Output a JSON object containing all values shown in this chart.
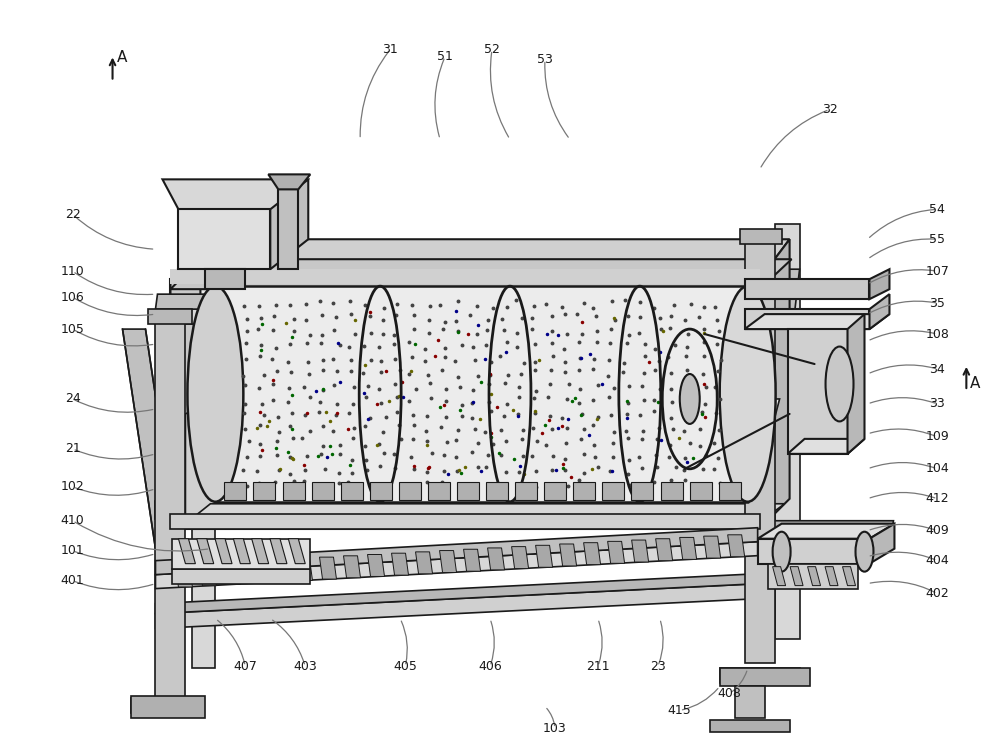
{
  "bg_color": "#ffffff",
  "lc": "#1a1a1a",
  "lc_light": "#666666",
  "lc_gray": "#aaaaaa",
  "fill_light": "#f0f0f0",
  "fill_mid": "#d8d8d8",
  "fill_dark": "#b8b8b8",
  "fill_darker": "#999999",
  "fig_width": 10.0,
  "fig_height": 7.49,
  "dpi": 100
}
